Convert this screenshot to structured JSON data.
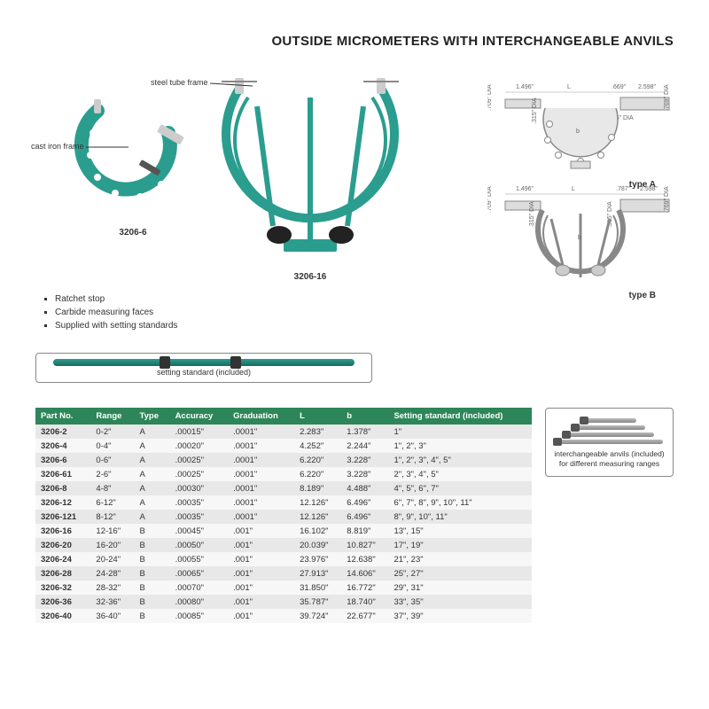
{
  "title": "OUTSIDE MICROMETERS WITH INTERCHANGEABLE ANVILS",
  "callouts": {
    "cast_iron": "cast iron frame",
    "steel_tube": "steel tube frame"
  },
  "models": {
    "small": "3206-6",
    "large": "3206-16"
  },
  "features": [
    "Ratchet stop",
    "Carbide measuring faces",
    "Supplied with setting standards"
  ],
  "setting_standard_label": "setting standard (included)",
  "type_labels": {
    "a": "type A",
    "b": "type B"
  },
  "tech_dims": {
    "left_len": "1.496\"",
    "L": "L",
    "right_a1": ".669\"",
    "right_a2": "2.598\"",
    "dia_709": ".709\" DIA",
    "dia_315": ".315\" DIA",
    "dia_256": ".256\" DIA",
    "dia_769": ".769\" DIA",
    "right_b1": ".787\"",
    "b": "b"
  },
  "table": {
    "headers": [
      "Part No.",
      "Range",
      "Type",
      "Accuracy",
      "Graduation",
      "L",
      "b",
      "Setting standard (included)"
    ],
    "rows": [
      [
        "3206-2",
        "0-2\"",
        "A",
        ".00015\"",
        ".0001\"",
        "2.283\"",
        "1.378\"",
        "1\""
      ],
      [
        "3206-4",
        "0-4\"",
        "A",
        ".00020\"",
        ".0001\"",
        "4.252\"",
        "2.244\"",
        "1\", 2\", 3\""
      ],
      [
        "3206-6",
        "0-6\"",
        "A",
        ".00025\"",
        ".0001\"",
        "6.220\"",
        "3.228\"",
        "1\", 2\", 3\", 4\", 5\""
      ],
      [
        "3206-61",
        "2-6\"",
        "A",
        ".00025\"",
        ".0001\"",
        "6.220\"",
        "3.228\"",
        "2\", 3\", 4\", 5\""
      ],
      [
        "3206-8",
        "4-8\"",
        "A",
        ".00030\"",
        ".0001\"",
        "8.189\"",
        "4.488\"",
        "4\", 5\", 6\", 7\""
      ],
      [
        "3206-12",
        "6-12\"",
        "A",
        ".00035\"",
        ".0001\"",
        "12.126\"",
        "6.496\"",
        "6\", 7\", 8\", 9\", 10\", 11\""
      ],
      [
        "3206-121",
        "8-12\"",
        "A",
        ".00035\"",
        ".0001\"",
        "12.126\"",
        "6.496\"",
        "8\", 9\", 10\", 11\""
      ],
      [
        "3206-16",
        "12-16\"",
        "B",
        ".00045\"",
        ".001\"",
        "16.102\"",
        "8.819\"",
        "13\", 15\""
      ],
      [
        "3206-20",
        "16-20\"",
        "B",
        ".00050\"",
        ".001\"",
        "20.039\"",
        "10.827\"",
        "17\", 19\""
      ],
      [
        "3206-24",
        "20-24\"",
        "B",
        ".00055\"",
        ".001\"",
        "23.976\"",
        "12.638\"",
        "21\", 23\""
      ],
      [
        "3206-28",
        "24-28\"",
        "B",
        ".00065\"",
        ".001\"",
        "27.913\"",
        "14.606\"",
        "25\", 27\""
      ],
      [
        "3206-32",
        "28-32\"",
        "B",
        ".00070\"",
        ".001\"",
        "31.850\"",
        "16.772\"",
        "29\", 31\""
      ],
      [
        "3206-36",
        "32-36\"",
        "B",
        ".00080\"",
        ".001\"",
        "35.787\"",
        "18.740\"",
        "33\", 35\""
      ],
      [
        "3206-40",
        "36-40\"",
        "B",
        ".00085\"",
        ".001\"",
        "39.724\"",
        "22.677\"",
        "37\", 39\""
      ]
    ]
  },
  "anvils_caption": "interchangeable anvils (included) for different measuring ranges",
  "colors": {
    "teal": "#2a9d8f",
    "teal_dark": "#1a7d6f",
    "header_green": "#2d8659",
    "row_odd": "#e8e8e8",
    "row_even": "#f7f7f7",
    "gray": "#888",
    "steel": "#b0b0b0"
  }
}
